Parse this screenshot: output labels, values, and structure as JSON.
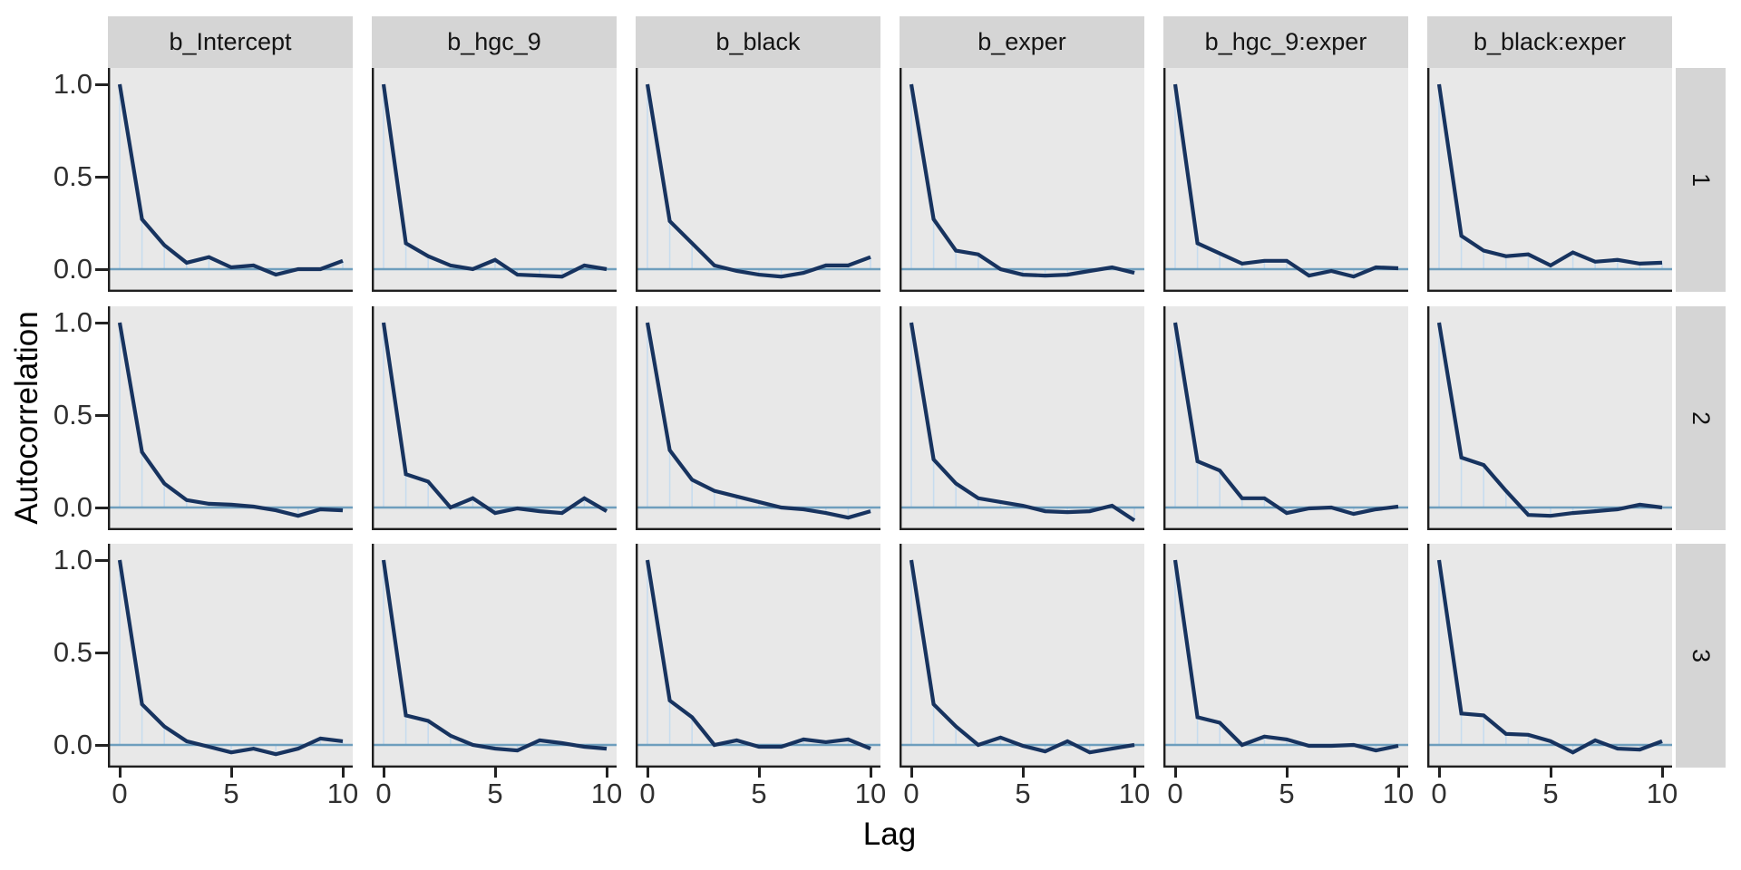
{
  "figure": {
    "description": "Faceted autocorrelation plot of MCMC chains by parameter and chain"
  },
  "axes": {
    "x_label": "Lag",
    "y_label": "Autocorrelation",
    "x_tick_labels": [
      "0",
      "5",
      "10"
    ],
    "y_tick_labels": [
      "1.0",
      "0.5",
      "0.0"
    ]
  },
  "facets": {
    "column_labels": [
      "b_Intercept",
      "b_hgc_9",
      "b_black",
      "b_exper",
      "b_hgc_9:exper",
      "b_black:exper"
    ],
    "row_labels": [
      "1",
      "2",
      "3"
    ]
  },
  "chart_data": {
    "type": "line",
    "title": "",
    "xlabel": "Lag",
    "ylabel": "Autocorrelation",
    "x": [
      0,
      1,
      2,
      3,
      4,
      5,
      6,
      7,
      8,
      9,
      10
    ],
    "x_ticks": [
      0,
      5,
      10
    ],
    "y_ticks": [
      1.0,
      0.5,
      0.0
    ],
    "xlim": [
      -0.55,
      10.55
    ],
    "ylim": [
      -0.12,
      1.09
    ],
    "grid": false,
    "legend": false,
    "facet_columns": [
      "b_Intercept",
      "b_hgc_9",
      "b_black",
      "b_exper",
      "b_hgc_9:exper",
      "b_black:exper"
    ],
    "facet_rows": [
      "1",
      "2",
      "3"
    ],
    "series": [
      {
        "parameter": "b_Intercept",
        "chain": "1",
        "values": [
          1.0,
          0.27,
          0.13,
          0.035,
          0.065,
          0.01,
          0.02,
          -0.03,
          0.0,
          0.0,
          0.045
        ]
      },
      {
        "parameter": "b_hgc_9",
        "chain": "1",
        "values": [
          1.0,
          0.14,
          0.07,
          0.02,
          0.0,
          0.05,
          -0.03,
          -0.035,
          -0.04,
          0.02,
          0.0
        ]
      },
      {
        "parameter": "b_black",
        "chain": "1",
        "values": [
          1.0,
          0.26,
          0.14,
          0.02,
          -0.01,
          -0.03,
          -0.04,
          -0.02,
          0.02,
          0.02,
          0.065
        ]
      },
      {
        "parameter": "b_exper",
        "chain": "1",
        "values": [
          1.0,
          0.27,
          0.1,
          0.08,
          0.0,
          -0.03,
          -0.035,
          -0.03,
          -0.01,
          0.01,
          -0.02
        ]
      },
      {
        "parameter": "b_hgc_9:exper",
        "chain": "1",
        "values": [
          1.0,
          0.14,
          0.085,
          0.03,
          0.045,
          0.045,
          -0.035,
          -0.01,
          -0.04,
          0.01,
          0.005
        ]
      },
      {
        "parameter": "b_black:exper",
        "chain": "1",
        "values": [
          1.0,
          0.18,
          0.1,
          0.07,
          0.08,
          0.02,
          0.09,
          0.04,
          0.05,
          0.03,
          0.035
        ]
      },
      {
        "parameter": "b_Intercept",
        "chain": "2",
        "values": [
          1.0,
          0.3,
          0.13,
          0.04,
          0.02,
          0.015,
          0.005,
          -0.015,
          -0.045,
          -0.01,
          -0.015
        ]
      },
      {
        "parameter": "b_hgc_9",
        "chain": "2",
        "values": [
          1.0,
          0.18,
          0.14,
          0.0,
          0.05,
          -0.03,
          -0.005,
          -0.02,
          -0.03,
          0.05,
          -0.02
        ]
      },
      {
        "parameter": "b_black",
        "chain": "2",
        "values": [
          1.0,
          0.31,
          0.15,
          0.09,
          0.06,
          0.03,
          0.0,
          -0.01,
          -0.03,
          -0.055,
          -0.02
        ]
      },
      {
        "parameter": "b_exper",
        "chain": "2",
        "values": [
          1.0,
          0.26,
          0.13,
          0.05,
          0.03,
          0.01,
          -0.02,
          -0.025,
          -0.02,
          0.01,
          -0.07
        ]
      },
      {
        "parameter": "b_hgc_9:exper",
        "chain": "2",
        "values": [
          1.0,
          0.25,
          0.2,
          0.05,
          0.05,
          -0.03,
          -0.005,
          0.0,
          -0.035,
          -0.01,
          0.005
        ]
      },
      {
        "parameter": "b_black:exper",
        "chain": "2",
        "values": [
          1.0,
          0.27,
          0.23,
          0.09,
          -0.04,
          -0.045,
          -0.03,
          -0.02,
          -0.01,
          0.015,
          0.0
        ]
      },
      {
        "parameter": "b_Intercept",
        "chain": "3",
        "values": [
          1.0,
          0.22,
          0.1,
          0.02,
          -0.01,
          -0.04,
          -0.02,
          -0.05,
          -0.02,
          0.035,
          0.02
        ]
      },
      {
        "parameter": "b_hgc_9",
        "chain": "3",
        "values": [
          1.0,
          0.16,
          0.13,
          0.05,
          0.0,
          -0.02,
          -0.03,
          0.025,
          0.01,
          -0.01,
          -0.02
        ]
      },
      {
        "parameter": "b_black",
        "chain": "3",
        "values": [
          1.0,
          0.24,
          0.15,
          0.0,
          0.025,
          -0.01,
          -0.01,
          0.03,
          0.015,
          0.03,
          -0.02
        ]
      },
      {
        "parameter": "b_exper",
        "chain": "3",
        "values": [
          1.0,
          0.22,
          0.1,
          0.0,
          0.04,
          -0.005,
          -0.035,
          0.02,
          -0.04,
          -0.02,
          0.0
        ]
      },
      {
        "parameter": "b_hgc_9:exper",
        "chain": "3",
        "values": [
          1.0,
          0.15,
          0.12,
          0.0,
          0.045,
          0.03,
          -0.005,
          -0.005,
          0.0,
          -0.03,
          -0.005
        ]
      },
      {
        "parameter": "b_black:exper",
        "chain": "3",
        "values": [
          1.0,
          0.17,
          0.16,
          0.06,
          0.055,
          0.02,
          -0.04,
          0.025,
          -0.02,
          -0.025,
          0.02
        ]
      }
    ]
  },
  "style": {
    "line_color": "#17335f",
    "zero_line_color": "#6e9ebd",
    "lollipop_color": "#c7dcee",
    "panel_background": "#e8e8e8",
    "strip_background": "#d5d5d5",
    "axis_line_color": "#1f1f1f",
    "tick_label_color": "#303030",
    "page_background": "#ffffff"
  }
}
